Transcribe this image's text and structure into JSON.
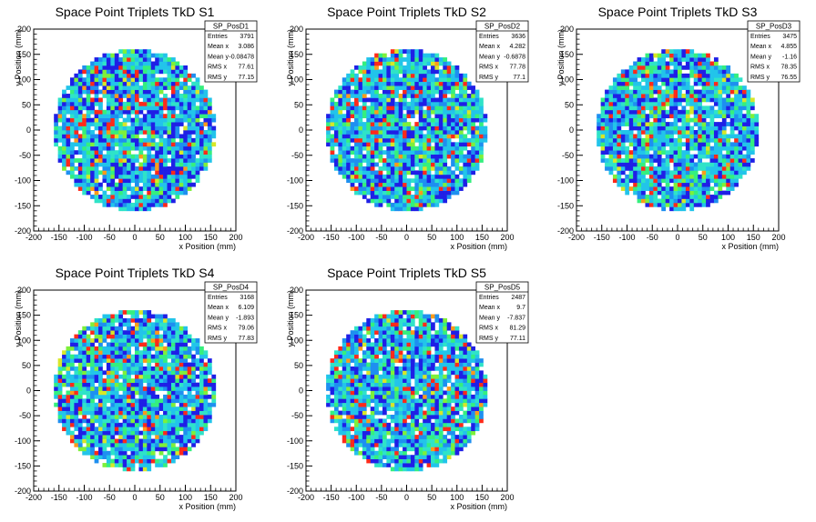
{
  "chart_data": [
    {
      "type": "heatmap",
      "title": "Space Point Triplets TkD S1",
      "xlabel": "x Position (mm)",
      "ylabel": "y Position (mm)",
      "xlim": [
        -200,
        200
      ],
      "ylim": [
        -200,
        200
      ],
      "x_ticks": [
        "-200",
        "-150",
        "-100",
        "-50",
        "0",
        "50",
        "100",
        "150",
        "200"
      ],
      "y_ticks": [
        "-200",
        "-150",
        "-100",
        "-50",
        "0",
        "50",
        "100",
        "150",
        "200"
      ],
      "distribution": {
        "shape": "disc",
        "center": [
          0,
          0
        ],
        "radius_mm": 160,
        "bin_mm": 8
      },
      "stats": {
        "name": "SP_PosD1",
        "rows": [
          {
            "label": "Entries",
            "value": "3791"
          },
          {
            "label": "Mean x",
            "value": "3.086"
          },
          {
            "label": "Mean y",
            "value": "-0.08478"
          },
          {
            "label": "RMS x",
            "value": "77.61"
          },
          {
            "label": "RMS y",
            "value": "77.15"
          }
        ]
      }
    },
    {
      "type": "heatmap",
      "title": "Space Point Triplets TkD S2",
      "xlabel": "x Position (mm)",
      "ylabel": "y Position (mm)",
      "xlim": [
        -200,
        200
      ],
      "ylim": [
        -200,
        200
      ],
      "x_ticks": [
        "-200",
        "-150",
        "-100",
        "-50",
        "0",
        "50",
        "100",
        "150",
        "200"
      ],
      "y_ticks": [
        "-200",
        "-150",
        "-100",
        "-50",
        "0",
        "50",
        "100",
        "150",
        "200"
      ],
      "distribution": {
        "shape": "disc",
        "center": [
          0,
          0
        ],
        "radius_mm": 160,
        "bin_mm": 8
      },
      "stats": {
        "name": "SP_PosD2",
        "rows": [
          {
            "label": "Entries",
            "value": "3636"
          },
          {
            "label": "Mean x",
            "value": "4.282"
          },
          {
            "label": "Mean y",
            "value": "-0.6878"
          },
          {
            "label": "RMS x",
            "value": "77.78"
          },
          {
            "label": "RMS y",
            "value": "77.1"
          }
        ]
      }
    },
    {
      "type": "heatmap",
      "title": "Space Point Triplets TkD S3",
      "xlabel": "x Position (mm)",
      "ylabel": "y Position (mm)",
      "xlim": [
        -200,
        200
      ],
      "ylim": [
        -200,
        200
      ],
      "x_ticks": [
        "-200",
        "-150",
        "-100",
        "-50",
        "0",
        "50",
        "100",
        "150",
        "200"
      ],
      "y_ticks": [
        "-200",
        "-150",
        "-100",
        "-50",
        "0",
        "50",
        "100",
        "150",
        "200"
      ],
      "distribution": {
        "shape": "disc",
        "center": [
          0,
          0
        ],
        "radius_mm": 160,
        "bin_mm": 8
      },
      "stats": {
        "name": "SP_PosD3",
        "rows": [
          {
            "label": "Entries",
            "value": "3475"
          },
          {
            "label": "Mean x",
            "value": "4.855"
          },
          {
            "label": "Mean y",
            "value": "-1.16"
          },
          {
            "label": "RMS x",
            "value": "78.35"
          },
          {
            "label": "RMS y",
            "value": "76.55"
          }
        ]
      }
    },
    {
      "type": "heatmap",
      "title": "Space Point Triplets TkD S4",
      "xlabel": "x Position (mm)",
      "ylabel": "y Position (mm)",
      "xlim": [
        -200,
        200
      ],
      "ylim": [
        -200,
        200
      ],
      "x_ticks": [
        "-200",
        "-150",
        "-100",
        "-50",
        "0",
        "50",
        "100",
        "150",
        "200"
      ],
      "y_ticks": [
        "-200",
        "-150",
        "-100",
        "-50",
        "0",
        "50",
        "100",
        "150",
        "200"
      ],
      "distribution": {
        "shape": "disc",
        "center": [
          0,
          0
        ],
        "radius_mm": 160,
        "bin_mm": 8
      },
      "stats": {
        "name": "SP_PosD4",
        "rows": [
          {
            "label": "Entries",
            "value": "3168"
          },
          {
            "label": "Mean x",
            "value": "6.109"
          },
          {
            "label": "Mean y",
            "value": "-1.893"
          },
          {
            "label": "RMS x",
            "value": "79.06"
          },
          {
            "label": "RMS y",
            "value": "77.83"
          }
        ]
      }
    },
    {
      "type": "heatmap",
      "title": "Space Point Triplets TkD S5",
      "xlabel": "x Position (mm)",
      "ylabel": "y Position (mm)",
      "xlim": [
        -200,
        200
      ],
      "ylim": [
        -200,
        200
      ],
      "x_ticks": [
        "-200",
        "-150",
        "-100",
        "-50",
        "0",
        "50",
        "100",
        "150",
        "200"
      ],
      "y_ticks": [
        "-200",
        "-150",
        "-100",
        "-50",
        "0",
        "50",
        "100",
        "150",
        "200"
      ],
      "distribution": {
        "shape": "disc",
        "center": [
          0,
          0
        ],
        "radius_mm": 160,
        "bin_mm": 8
      },
      "stats": {
        "name": "SP_PosD5",
        "rows": [
          {
            "label": "Entries",
            "value": "2487"
          },
          {
            "label": "Mean x",
            "value": "9.7"
          },
          {
            "label": "Mean y",
            "value": "-7.837"
          },
          {
            "label": "RMS x",
            "value": "81.29"
          },
          {
            "label": "RMS y",
            "value": "77.11"
          }
        ]
      }
    }
  ],
  "colors": {
    "background": "#ffffff",
    "palette": [
      "#1f1fe6",
      "#1e8ff0",
      "#22c4ea",
      "#2fe3c8",
      "#35ef7e",
      "#7ef03a",
      "#d8e628",
      "#ff9a1a",
      "#ff2a1a"
    ]
  }
}
